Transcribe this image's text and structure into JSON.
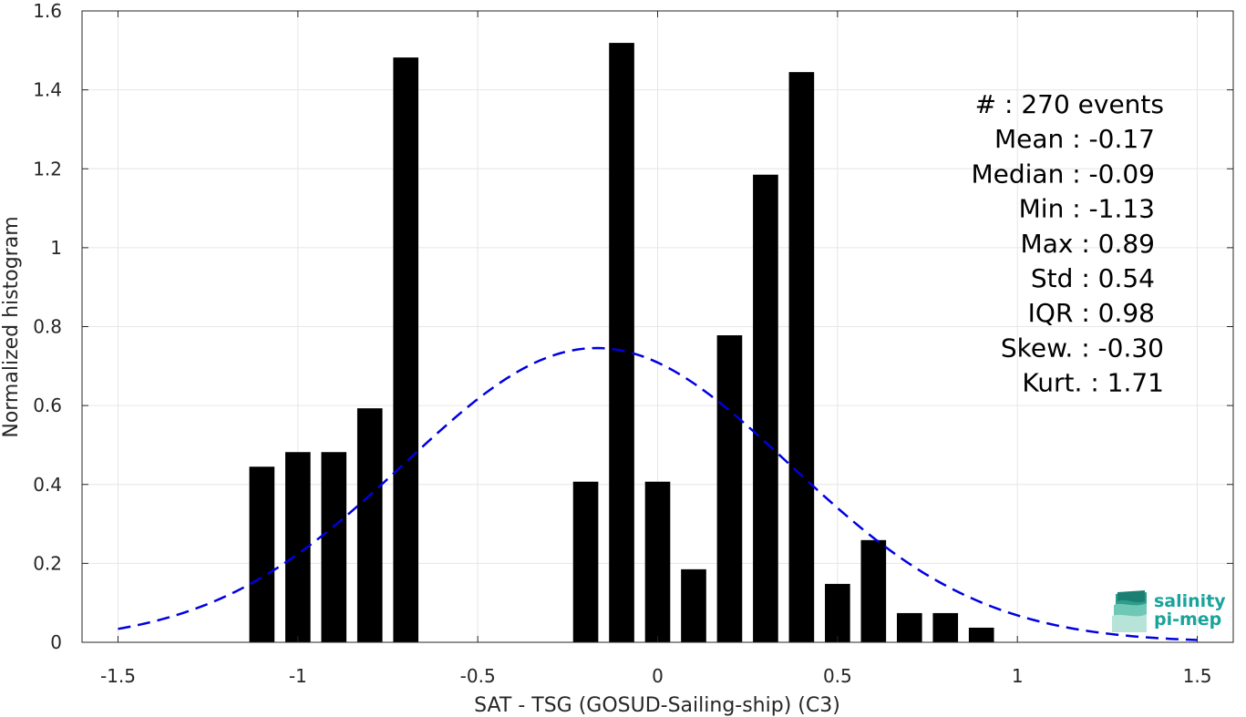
{
  "chart_data": {
    "type": "bar",
    "xlabel": "SAT - TSG (GOSUD-Sailing-ship) (C3)",
    "ylabel": "Normalized histogram",
    "xlim": [
      -1.6,
      1.6
    ],
    "ylim": [
      0,
      1.6
    ],
    "xticks": [
      -1.5,
      -1,
      -0.5,
      0,
      0.5,
      1,
      1.5
    ],
    "xtick_labels": [
      "-1.5",
      "-1",
      "-0.5",
      "0",
      "0.5",
      "1",
      "1.5"
    ],
    "yticks": [
      0,
      0.2,
      0.4,
      0.6,
      0.8,
      1,
      1.2,
      1.4,
      1.6
    ],
    "ytick_labels": [
      "0",
      "0.2",
      "0.4",
      "0.6",
      "0.8",
      "1",
      "1.2",
      "1.4",
      "1.6"
    ],
    "grid": true,
    "bar_width": 0.07,
    "bars": [
      {
        "x": -1.1,
        "y": 0.445
      },
      {
        "x": -1.0,
        "y": 0.482
      },
      {
        "x": -0.9,
        "y": 0.482
      },
      {
        "x": -0.8,
        "y": 0.593
      },
      {
        "x": -0.7,
        "y": 1.482
      },
      {
        "x": -0.2,
        "y": 0.407
      },
      {
        "x": -0.1,
        "y": 1.519
      },
      {
        "x": 0.0,
        "y": 0.407
      },
      {
        "x": 0.1,
        "y": 0.185
      },
      {
        "x": 0.2,
        "y": 0.778
      },
      {
        "x": 0.3,
        "y": 1.185
      },
      {
        "x": 0.4,
        "y": 1.445
      },
      {
        "x": 0.5,
        "y": 0.148
      },
      {
        "x": 0.6,
        "y": 0.259
      },
      {
        "x": 0.7,
        "y": 0.074
      },
      {
        "x": 0.8,
        "y": 0.074
      },
      {
        "x": 0.9,
        "y": 0.037
      }
    ],
    "fit_curve": {
      "style": "dashed",
      "color": "#0000e0",
      "mean": -0.17,
      "std": 0.535,
      "x_range": [
        -1.5,
        1.5
      ]
    },
    "bar_color": "#000000",
    "stats": [
      {
        "label": "#",
        "sep": " : ",
        "value": "270 events"
      },
      {
        "label": "Mean",
        "sep": " : ",
        "value": "-0.17"
      },
      {
        "label": "Median",
        "sep": " : ",
        "value": "-0.09"
      },
      {
        "label": "Min",
        "sep": " : ",
        "value": "-1.13"
      },
      {
        "label": "Max",
        "sep": " : ",
        "value": "0.89"
      },
      {
        "label": "Std",
        "sep": " : ",
        "value": "0.54"
      },
      {
        "label": "IQR",
        "sep": " : ",
        "value": "0.98"
      },
      {
        "label": "Skew.",
        "sep": " : ",
        "value": "-0.30"
      },
      {
        "label": "Kurt.",
        "sep": " : ",
        "value": "1.71"
      }
    ]
  },
  "logo": {
    "line1": "salinity",
    "line2": "pi-mep"
  }
}
